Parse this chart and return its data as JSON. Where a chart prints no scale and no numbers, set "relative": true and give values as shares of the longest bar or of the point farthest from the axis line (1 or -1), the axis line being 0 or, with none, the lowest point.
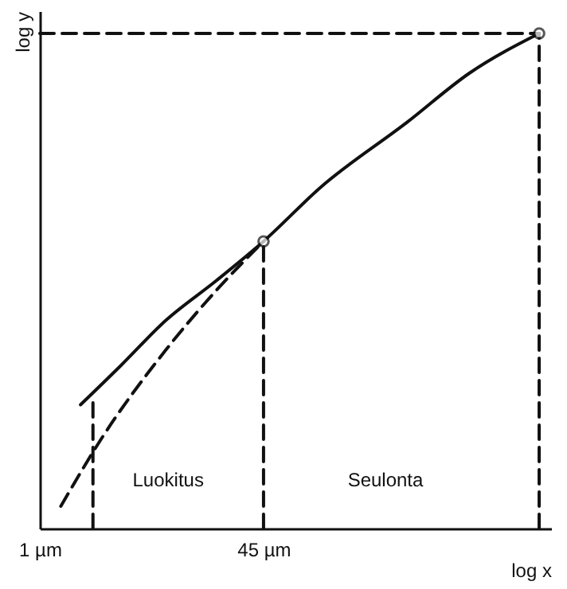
{
  "chart_data": {
    "type": "line",
    "relative": true,
    "xlabel": "log x",
    "ylabel": "log y",
    "log": "x",
    "grid": false,
    "xlim": [
      1,
      6000
    ],
    "xticks": [
      {
        "value": 1,
        "label": "1 µm"
      },
      {
        "value": 45,
        "label": "45 µm"
      }
    ],
    "series": [
      {
        "color": "#111111",
        "line_style": "solid",
        "x": [
          2,
          4,
          8.5,
          20,
          45,
          120,
          515,
          1500,
          4900
        ],
        "values": [
          0.25,
          0.33,
          0.42,
          0.5,
          0.58,
          0.69,
          0.82,
          0.92,
          1
        ]
      },
      {
        "type": "line",
        "color": "#111111",
        "line_style": "dashed",
        "x": [
          1.43,
          2.83,
          8.5,
          20,
          45
        ],
        "values": [
          0.045,
          0.18,
          0.36,
          0.48,
          0.58
        ]
      },
      {
        "type": "line",
        "color": "#111111",
        "line_style": "dashed",
        "x": [
          2.47,
          2.47
        ],
        "values": [
          0,
          0.26
        ]
      },
      {
        "type": "line",
        "color": "#111111",
        "line_style": "dashed",
        "x": [
          45,
          45
        ],
        "values": [
          0,
          0.58
        ]
      },
      {
        "type": "line",
        "color": "#111111",
        "line_style": "dashed",
        "x": [
          4900,
          4900
        ],
        "values": [
          0,
          1
        ]
      },
      {
        "type": "line",
        "color": "#111111",
        "line_style": "dashed",
        "x": [
          1,
          4900
        ],
        "values": [
          1,
          1
        ]
      },
      {
        "type": "scatter",
        "color": "#111111",
        "marker": "circle",
        "x": [
          45,
          4900
        ],
        "values": [
          0.58,
          1
        ]
      }
    ],
    "annotations": [
      "Luokitus",
      "Seulonta"
    ]
  }
}
